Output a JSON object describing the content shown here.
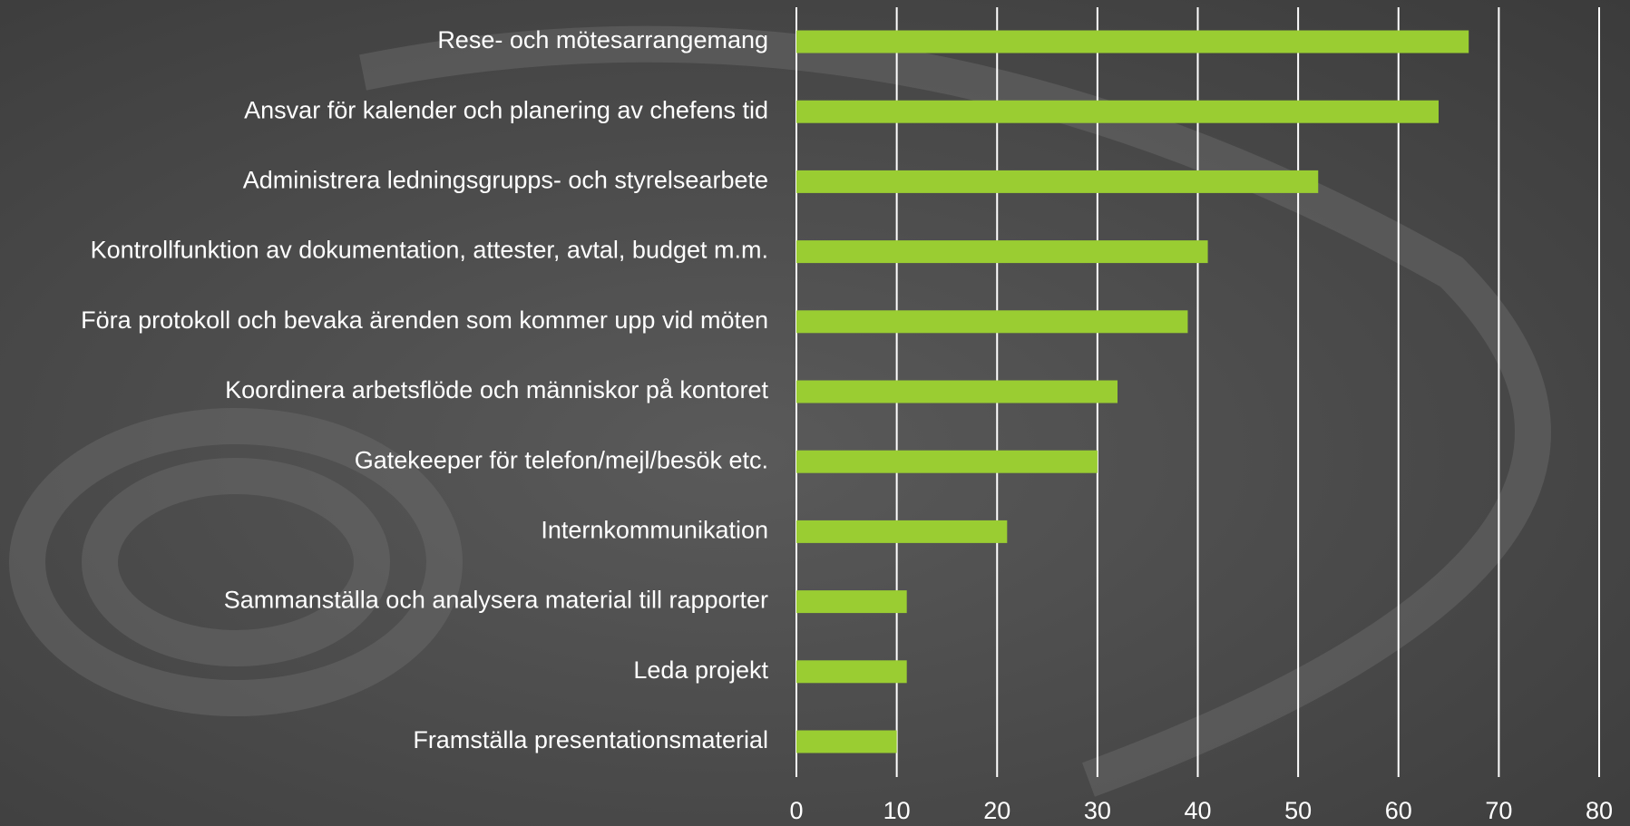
{
  "chart_data": {
    "type": "bar",
    "orientation": "horizontal",
    "categories": [
      "Rese- och mötesarrangemang",
      "Ansvar för kalender och planering av chefens tid",
      "Administrera ledningsgrupps- och styrelsearbete",
      "Kontrollfunktion av dokumentation, attester, avtal, budget m.m.",
      "Föra protokoll och bevaka ärenden som kommer upp vid möten",
      "Koordinera arbetsflöde och människor på kontoret",
      "Gatekeeper för telefon/mejl/besök etc.",
      "Internkommunikation",
      "Sammanställa och analysera material till rapporter",
      "Leda projekt",
      "Framställa presentationsmaterial"
    ],
    "values": [
      67,
      64,
      52,
      41,
      39,
      32,
      30,
      21,
      11,
      11,
      10
    ],
    "color": "#9acd32",
    "xlim": [
      0,
      80
    ],
    "xticks": [
      0,
      10,
      20,
      30,
      40,
      50,
      60,
      70,
      80
    ],
    "grid": true
  }
}
